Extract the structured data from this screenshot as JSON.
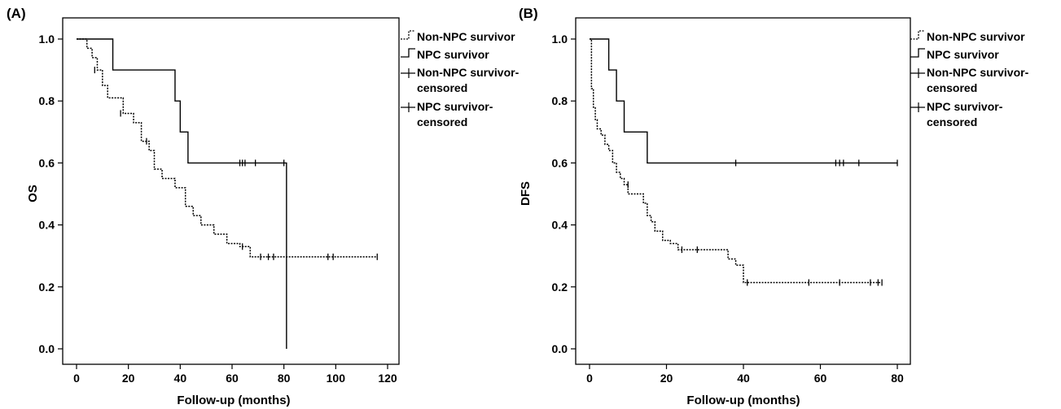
{
  "chart_data": [
    {
      "type": "line",
      "panel_label": "(A)",
      "xlabel": "Follow-up (months)",
      "ylabel": "OS",
      "xlim": [
        0,
        120
      ],
      "ylim": [
        0,
        1.0
      ],
      "xticks": [
        "0",
        "20",
        "40",
        "60",
        "80",
        "100",
        "120"
      ],
      "yticks": [
        "0.0",
        "0.2",
        "0.4",
        "0.6",
        "0.8",
        "1.0"
      ],
      "legend_position": "right",
      "legend": [
        "Non-NPC survivor",
        "NPC survivor",
        "Non-NPC survivor-\ncensored",
        "NPC survivor-\ncensored"
      ],
      "series": [
        {
          "name": "Non-NPC survivor",
          "style": "dotted",
          "x": [
            0,
            4,
            6,
            8,
            10,
            12,
            18,
            22,
            25,
            28,
            30,
            33,
            38,
            42,
            45,
            48,
            53,
            58,
            63,
            67,
            116
          ],
          "y": [
            1.0,
            0.97,
            0.94,
            0.9,
            0.85,
            0.81,
            0.76,
            0.73,
            0.67,
            0.64,
            0.58,
            0.55,
            0.52,
            0.46,
            0.43,
            0.4,
            0.37,
            0.34,
            0.33,
            0.297,
            0.297
          ]
        },
        {
          "name": "NPC survivor",
          "style": "solid",
          "x": [
            0,
            14,
            38,
            40,
            43,
            81,
            81
          ],
          "y": [
            1.0,
            0.9,
            0.8,
            0.7,
            0.6,
            0.6,
            0.0
          ]
        }
      ],
      "censored": [
        {
          "series": "Non-NPC survivor",
          "x": [
            7,
            17,
            27,
            64,
            71,
            74,
            76,
            97,
            99,
            116
          ],
          "y": [
            0.9,
            0.76,
            0.67,
            0.33,
            0.297,
            0.297,
            0.297,
            0.297,
            0.297,
            0.297
          ]
        },
        {
          "series": "NPC survivor",
          "x": [
            63,
            64,
            65,
            69,
            80
          ],
          "y": [
            0.6,
            0.6,
            0.6,
            0.6,
            0.6
          ]
        }
      ]
    },
    {
      "type": "line",
      "panel_label": "(B)",
      "xlabel": "Follow-up (months)",
      "ylabel": "DFS",
      "xlim": [
        0,
        80
      ],
      "ylim": [
        0,
        1.0
      ],
      "xticks": [
        "0",
        "20",
        "40",
        "60",
        "80"
      ],
      "yticks": [
        "0.0",
        "0.2",
        "0.4",
        "0.6",
        "0.8",
        "1.0"
      ],
      "legend_position": "right",
      "legend": [
        "Non-NPC survivor",
        "NPC survivor",
        "Non-NPC survivor-\ncensored",
        "NPC survivor-\ncensored"
      ],
      "series": [
        {
          "name": "Non-NPC survivor",
          "style": "dotted",
          "x": [
            0,
            0.5,
            1,
            1.5,
            2,
            3,
            4,
            5,
            6,
            7,
            8,
            9,
            10,
            12,
            14,
            15,
            16,
            17,
            19,
            21,
            23,
            33,
            36,
            38,
            40,
            76
          ],
          "y": [
            1.0,
            0.84,
            0.78,
            0.74,
            0.71,
            0.69,
            0.66,
            0.64,
            0.6,
            0.57,
            0.55,
            0.53,
            0.5,
            0.5,
            0.47,
            0.43,
            0.41,
            0.38,
            0.35,
            0.34,
            0.32,
            0.32,
            0.29,
            0.27,
            0.214,
            0.214
          ]
        },
        {
          "name": "NPC survivor",
          "style": "solid",
          "x": [
            0,
            5,
            6,
            7,
            9,
            15,
            80
          ],
          "y": [
            1.0,
            0.9,
            0.9,
            0.8,
            0.7,
            0.6,
            0.6
          ]
        }
      ],
      "censored": [
        {
          "series": "Non-NPC survivor",
          "x": [
            10,
            24,
            28,
            41,
            57,
            65,
            73,
            75,
            76
          ],
          "y": [
            0.53,
            0.32,
            0.32,
            0.214,
            0.214,
            0.214,
            0.214,
            0.214,
            0.214
          ]
        },
        {
          "series": "NPC survivor",
          "x": [
            38,
            64,
            65,
            66,
            70,
            80
          ],
          "y": [
            0.6,
            0.6,
            0.6,
            0.6,
            0.6,
            0.6
          ]
        }
      ]
    }
  ]
}
